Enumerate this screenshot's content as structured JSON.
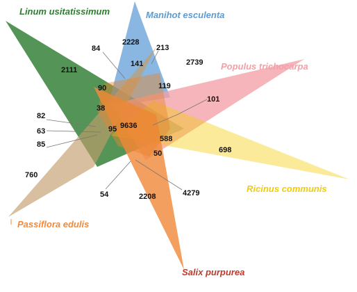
{
  "diagram": {
    "type": "venn",
    "sets": [
      {
        "key": "linum",
        "label": "Linum usitatissimum",
        "color": "#2e7d32"
      },
      {
        "key": "manihot",
        "label": "Manihot esculenta",
        "color": "#5b9bd5"
      },
      {
        "key": "populus",
        "label": "Populus trichocarpa",
        "color": "#f4a0a6"
      },
      {
        "key": "ricinus",
        "label": "Ricinus communis",
        "color": "#f2cc0c"
      },
      {
        "key": "passiflora",
        "label": "Passiflora edulis",
        "color": "#f08a3c"
      },
      {
        "key": "salix",
        "label": "Salix purpurea",
        "color": "#c0392b"
      }
    ],
    "counts": {
      "linum_only": "2111",
      "manihot_only": "2228",
      "populus_only": "2739",
      "ricinus_only": "698",
      "passiflora_only": "760",
      "salix_only": "2208",
      "c84": "84",
      "c213": "213",
      "c141": "141",
      "c90": "90",
      "c119": "119",
      "c38": "38",
      "c101": "101",
      "c82": "82",
      "c63": "63",
      "c95": "95",
      "all_shared": "9636",
      "c85": "85",
      "c588": "588",
      "c50": "50",
      "c54": "54",
      "c4279": "4279"
    }
  }
}
